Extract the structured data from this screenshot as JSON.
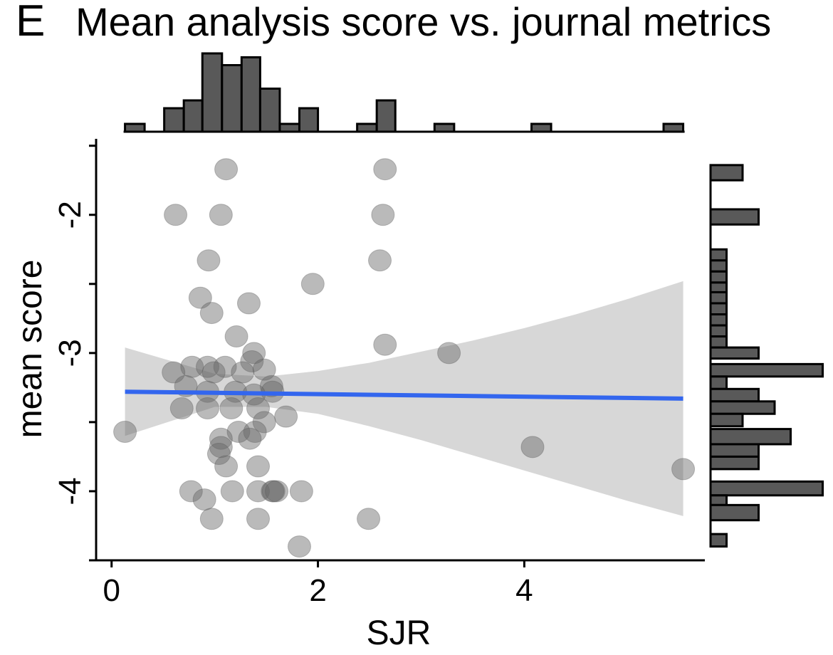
{
  "panel_label": "E",
  "chart_data": {
    "type": "scatter",
    "title": "Mean analysis score vs. journal metrics",
    "xlabel": "SJR",
    "ylabel": "mean score",
    "xlim": [
      -0.15,
      5.75
    ],
    "ylim": [
      -4.5,
      -1.45
    ],
    "x_ticks": [
      0,
      2,
      4
    ],
    "y_ticks": [
      -2,
      -3,
      -4
    ],
    "grid": false,
    "legend": "none",
    "colors": {
      "point": "#666666",
      "trend": "#3366ee",
      "band": "#d3d3d3",
      "bar": "#595959"
    },
    "points": [
      {
        "x": 1.11,
        "y": -1.67
      },
      {
        "x": 2.65,
        "y": -1.67
      },
      {
        "x": 0.62,
        "y": -2.0
      },
      {
        "x": 1.06,
        "y": -2.0
      },
      {
        "x": 2.63,
        "y": -2.0
      },
      {
        "x": 0.94,
        "y": -2.33
      },
      {
        "x": 2.6,
        "y": -2.33
      },
      {
        "x": 1.95,
        "y": -2.5
      },
      {
        "x": 0.86,
        "y": -2.6
      },
      {
        "x": 1.33,
        "y": -2.64
      },
      {
        "x": 0.97,
        "y": -2.71
      },
      {
        "x": 1.21,
        "y": -2.88
      },
      {
        "x": 2.65,
        "y": -2.94
      },
      {
        "x": 1.38,
        "y": -3.0
      },
      {
        "x": 3.27,
        "y": -3.0
      },
      {
        "x": 1.36,
        "y": -3.06
      },
      {
        "x": 0.78,
        "y": -3.1
      },
      {
        "x": 0.93,
        "y": -3.1
      },
      {
        "x": 1.1,
        "y": -3.1
      },
      {
        "x": 0.6,
        "y": -3.14
      },
      {
        "x": 0.99,
        "y": -3.14
      },
      {
        "x": 1.48,
        "y": -3.12
      },
      {
        "x": 1.27,
        "y": -3.14
      },
      {
        "x": 0.72,
        "y": -3.24
      },
      {
        "x": 1.55,
        "y": -3.24
      },
      {
        "x": 1.2,
        "y": -3.28
      },
      {
        "x": 1.56,
        "y": -3.28
      },
      {
        "x": 0.93,
        "y": -3.28
      },
      {
        "x": 1.38,
        "y": -3.3
      },
      {
        "x": 0.68,
        "y": -3.4
      },
      {
        "x": 0.93,
        "y": -3.4
      },
      {
        "x": 1.16,
        "y": -3.4
      },
      {
        "x": 1.42,
        "y": -3.4
      },
      {
        "x": 1.69,
        "y": -3.46
      },
      {
        "x": 1.48,
        "y": -3.5
      },
      {
        "x": 0.13,
        "y": -3.57
      },
      {
        "x": 1.23,
        "y": -3.57
      },
      {
        "x": 1.39,
        "y": -3.57
      },
      {
        "x": 1.34,
        "y": -3.62
      },
      {
        "x": 1.06,
        "y": -3.62
      },
      {
        "x": 1.06,
        "y": -3.68
      },
      {
        "x": 1.04,
        "y": -3.73
      },
      {
        "x": 1.11,
        "y": -3.82
      },
      {
        "x": 1.42,
        "y": -3.82
      },
      {
        "x": 4.08,
        "y": -3.68
      },
      {
        "x": 5.54,
        "y": -3.84
      },
      {
        "x": 0.77,
        "y": -4.0
      },
      {
        "x": 1.17,
        "y": -4.0
      },
      {
        "x": 1.42,
        "y": -4.0
      },
      {
        "x": 1.56,
        "y": -4.0
      },
      {
        "x": 1.57,
        "y": -4.0
      },
      {
        "x": 1.6,
        "y": -4.0
      },
      {
        "x": 1.84,
        "y": -4.0
      },
      {
        "x": 0.9,
        "y": -4.06
      },
      {
        "x": 0.97,
        "y": -4.2
      },
      {
        "x": 1.42,
        "y": -4.2
      },
      {
        "x": 2.49,
        "y": -4.2
      },
      {
        "x": 1.82,
        "y": -4.4
      }
    ],
    "trend": {
      "x0": 0.13,
      "y0": -3.28,
      "x1": 5.54,
      "y1": -3.33
    },
    "band": [
      {
        "x": 0.13,
        "lo": -3.6,
        "hi": -2.96
      },
      {
        "x": 1.0,
        "lo": -3.39,
        "hi": -3.15
      },
      {
        "x": 1.5,
        "lo": -3.39,
        "hi": -3.17
      },
      {
        "x": 2.0,
        "lo": -3.44,
        "hi": -3.13
      },
      {
        "x": 2.5,
        "lo": -3.53,
        "hi": -3.07
      },
      {
        "x": 3.0,
        "lo": -3.63,
        "hi": -2.99
      },
      {
        "x": 3.5,
        "lo": -3.74,
        "hi": -2.91
      },
      {
        "x": 4.0,
        "lo": -3.85,
        "hi": -2.82
      },
      {
        "x": 4.5,
        "lo": -3.96,
        "hi": -2.72
      },
      {
        "x": 5.0,
        "lo": -4.07,
        "hi": -2.61
      },
      {
        "x": 5.54,
        "lo": -4.18,
        "hi": -2.48
      }
    ],
    "x_histogram": {
      "bins": [
        {
          "x0": 0.13,
          "x1": 0.32,
          "count": 1
        },
        {
          "x0": 0.51,
          "x1": 0.7,
          "count": 3
        },
        {
          "x0": 0.7,
          "x1": 0.88,
          "count": 4
        },
        {
          "x0": 0.88,
          "x1": 1.07,
          "count": 10
        },
        {
          "x0": 1.07,
          "x1": 1.26,
          "count": 8.5
        },
        {
          "x0": 1.26,
          "x1": 1.44,
          "count": 9.5
        },
        {
          "x0": 1.44,
          "x1": 1.63,
          "count": 5.5
        },
        {
          "x0": 1.63,
          "x1": 1.82,
          "count": 1
        },
        {
          "x0": 1.82,
          "x1": 2.0,
          "count": 3
        },
        {
          "x0": 2.38,
          "x1": 2.57,
          "count": 1
        },
        {
          "x0": 2.57,
          "x1": 2.75,
          "count": 4
        },
        {
          "x0": 3.13,
          "x1": 3.32,
          "count": 1
        },
        {
          "x0": 4.07,
          "x1": 4.26,
          "count": 1
        },
        {
          "x0": 5.35,
          "x1": 5.54,
          "count": 1
        }
      ]
    },
    "y_histogram": {
      "bins": [
        {
          "y0": -1.75,
          "y1": -1.64,
          "count": 2
        },
        {
          "y0": -2.07,
          "y1": -1.96,
          "count": 3
        },
        {
          "y0": -2.33,
          "y1": -2.25,
          "count": 1
        },
        {
          "y0": -2.41,
          "y1": -2.33,
          "count": 1
        },
        {
          "y0": -2.49,
          "y1": -2.41,
          "count": 1
        },
        {
          "y0": -2.56,
          "y1": -2.49,
          "count": 1
        },
        {
          "y0": -2.64,
          "y1": -2.56,
          "count": 1
        },
        {
          "y0": -2.72,
          "y1": -2.64,
          "count": 1
        },
        {
          "y0": -2.8,
          "y1": -2.72,
          "count": 1
        },
        {
          "y0": -2.88,
          "y1": -2.8,
          "count": 1
        },
        {
          "y0": -2.96,
          "y1": -2.88,
          "count": 1
        },
        {
          "y0": -3.04,
          "y1": -2.96,
          "count": 3
        },
        {
          "y0": -3.17,
          "y1": -3.08,
          "count": 7
        },
        {
          "y0": -3.26,
          "y1": -3.17,
          "count": 1
        },
        {
          "y0": -3.35,
          "y1": -3.26,
          "count": 3
        },
        {
          "y0": -3.44,
          "y1": -3.35,
          "count": 4
        },
        {
          "y0": -3.53,
          "y1": -3.44,
          "count": 2
        },
        {
          "y0": -3.66,
          "y1": -3.55,
          "count": 5
        },
        {
          "y0": -3.75,
          "y1": -3.66,
          "count": 3
        },
        {
          "y0": -3.84,
          "y1": -3.75,
          "count": 3
        },
        {
          "y0": -4.03,
          "y1": -3.93,
          "count": 7
        },
        {
          "y0": -4.1,
          "y1": -4.03,
          "count": 1
        },
        {
          "y0": -4.21,
          "y1": -4.1,
          "count": 3
        },
        {
          "y0": -4.4,
          "y1": -4.31,
          "count": 1
        }
      ]
    }
  }
}
